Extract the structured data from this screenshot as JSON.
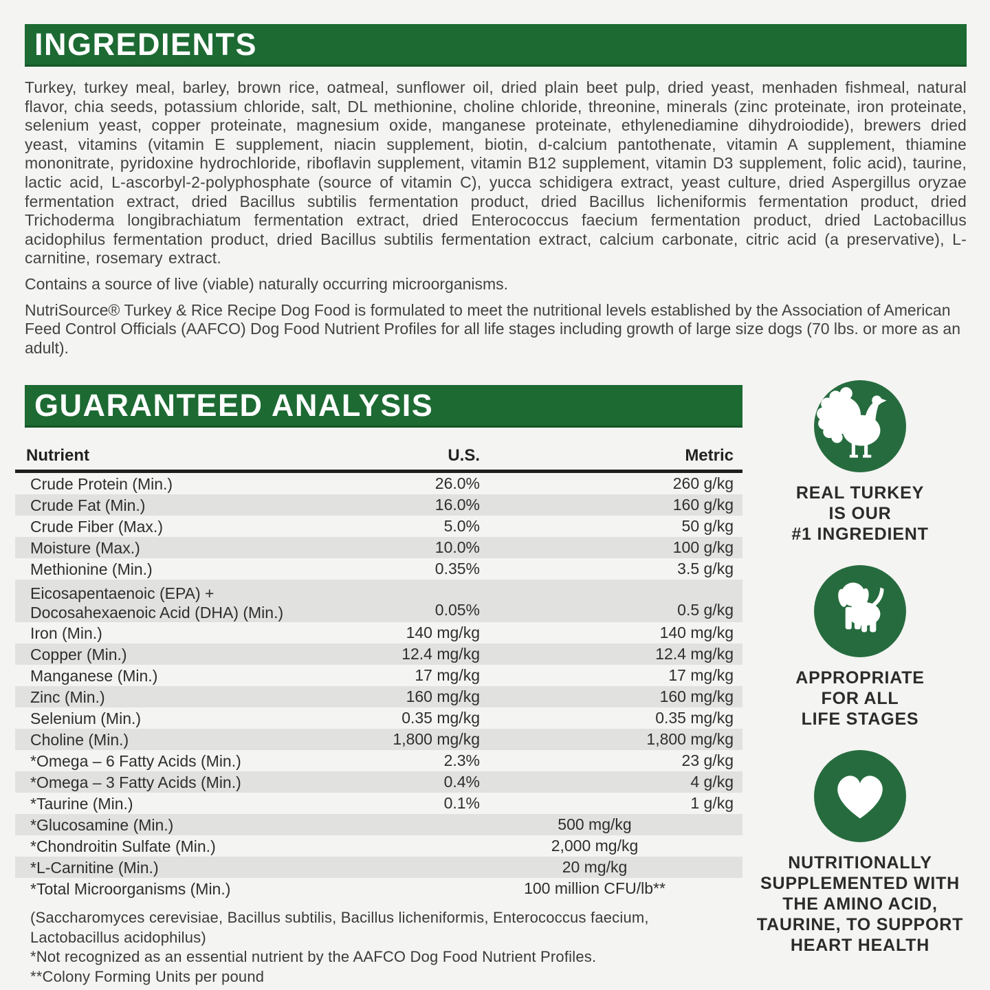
{
  "colors": {
    "accent_green_bar": "#1d6a33",
    "accent_green_circle": "#266b3e",
    "table_row_gray": "#e1e1e0",
    "page_background": "#f4f4f2"
  },
  "ingredients": {
    "title": "INGREDIENTS",
    "body": "Turkey, turkey meal, barley, brown rice, oatmeal, sunflower oil, dried plain beet pulp, dried yeast, menhaden fishmeal, natural flavor, chia seeds, potassium chloride, salt, DL methionine, choline chloride, threonine, minerals (zinc proteinate, iron proteinate, selenium yeast, copper proteinate, magnesium oxide, manganese proteinate, ethylenediamine dihydroiodide), brewers dried yeast, vitamins (vitamin E supplement, niacin supplement, biotin, d-calcium pantothenate, vitamin A supplement, thiamine mononitrate, pyridoxine hydrochloride, riboflavin supplement, vitamin B12 supplement, vitamin D3 supplement, folic acid), taurine, lactic acid, L-ascorbyl-2-polyphosphate (source of vitamin C), yucca schidigera extract, yeast culture, dried Aspergillus oryzae fermentation extract, dried Bacillus subtilis fermentation product, dried Bacillus licheniformis fermentation product, dried Trichoderma longibrachiatum fermentation extract, dried Enterococcus faecium fermentation product, dried Lactobacillus acidophilus fermentation product, dried Bacillus subtilis fermentation extract, calcium carbonate, citric acid (a preservative), L-carnitine, rosemary extract.",
    "contains_note": "Contains a source of live (viable) naturally occurring microorganisms.",
    "aafco_statement": "NutriSource® Turkey & Rice Recipe Dog Food is formulated to meet the nutritional levels established by the Association of American Feed Control Officials (AAFCO) Dog Food Nutrient Profiles for all life stages including growth of large size dogs (70 lbs. or more as an adult)."
  },
  "analysis": {
    "title": "GUARANTEED ANALYSIS",
    "columns": [
      "Nutrient",
      "U.S.",
      "Metric"
    ],
    "rows": [
      {
        "nutrient": "Crude Protein (Min.)",
        "us": "26.0%",
        "metric": "260 g/kg",
        "shaded": false
      },
      {
        "nutrient": "Crude Fat (Min.)",
        "us": "16.0%",
        "metric": "160 g/kg",
        "shaded": true
      },
      {
        "nutrient": "Crude Fiber (Max.)",
        "us": "5.0%",
        "metric": "50 g/kg",
        "shaded": false
      },
      {
        "nutrient": "Moisture (Max.)",
        "us": "10.0%",
        "metric": "100 g/kg",
        "shaded": true
      },
      {
        "nutrient": "Methionine (Min.)",
        "us": "0.35%",
        "metric": "3.5 g/kg",
        "shaded": false
      },
      {
        "nutrient": "Eicosapentaenoic (EPA) +\nDocosahexaenoic Acid (DHA) (Min.)",
        "us": "0.05%",
        "metric": "0.5 g/kg",
        "shaded": true
      },
      {
        "nutrient": "Iron (Min.)",
        "us": "140 mg/kg",
        "metric": "140 mg/kg",
        "shaded": false
      },
      {
        "nutrient": "Copper (Min.)",
        "us": "12.4 mg/kg",
        "metric": "12.4 mg/kg",
        "shaded": true
      },
      {
        "nutrient": "Manganese (Min.)",
        "us": "17 mg/kg",
        "metric": "17 mg/kg",
        "shaded": false
      },
      {
        "nutrient": "Zinc (Min.)",
        "us": "160 mg/kg",
        "metric": "160 mg/kg",
        "shaded": true
      },
      {
        "nutrient": "Selenium (Min.)",
        "us": "0.35 mg/kg",
        "metric": "0.35 mg/kg",
        "shaded": false
      },
      {
        "nutrient": "Choline (Min.)",
        "us": "1,800 mg/kg",
        "metric": "1,800 mg/kg",
        "shaded": true
      },
      {
        "nutrient": "*Omega – 6 Fatty Acids (Min.)",
        "us": "2.3%",
        "metric": "23 g/kg",
        "shaded": false
      },
      {
        "nutrient": "*Omega – 3 Fatty Acids (Min.)",
        "us": "0.4%",
        "metric": "4 g/kg",
        "shaded": true
      },
      {
        "nutrient": "*Taurine (Min.)",
        "us": "0.1%",
        "metric": "1 g/kg",
        "shaded": false
      },
      {
        "nutrient": "*Glucosamine (Min.)",
        "merged": "500 mg/kg",
        "shaded": true
      },
      {
        "nutrient": "*Chondroitin Sulfate (Min.)",
        "merged": "2,000 mg/kg",
        "shaded": false
      },
      {
        "nutrient": "*L-Carnitine (Min.)",
        "merged": "20 mg/kg",
        "shaded": true
      },
      {
        "nutrient": "*Total Microorganisms (Min.)",
        "merged": "100 million CFU/lb**",
        "shaded": false
      }
    ],
    "footnotes": [
      "(Saccharomyces cerevisiae, Bacillus subtilis, Bacillus licheniformis, Enterococcus faecium, Lactobacillus acidophilus)",
      "*Not recognized as an essential nutrient by the AAFCO Dog Food Nutrient Profiles.",
      "**Colony Forming Units per pound"
    ]
  },
  "badges": [
    {
      "icon": "turkey-icon",
      "label": "REAL TURKEY\nIS OUR\n#1 INGREDIENT"
    },
    {
      "icon": "dog-icon",
      "label": "APPROPRIATE\nFOR ALL\nLIFE STAGES"
    },
    {
      "icon": "heart-icon",
      "label": "NUTRITIONALLY\nSUPPLEMENTED WITH\nTHE AMINO ACID,\nTAURINE, TO SUPPORT\nHEART HEALTH"
    }
  ]
}
